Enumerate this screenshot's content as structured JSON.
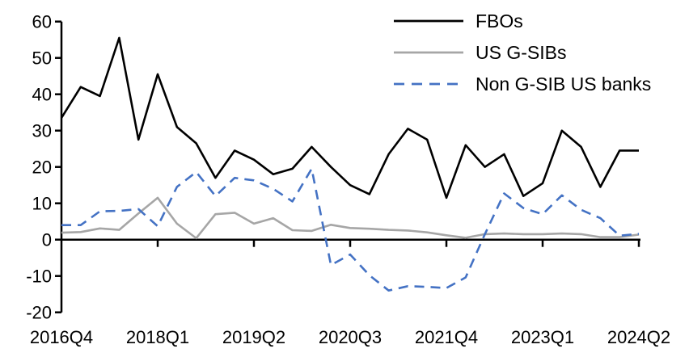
{
  "chart_data": {
    "type": "line",
    "title": "",
    "xlabel": "",
    "ylabel": "",
    "categories": [
      "2016Q4",
      "2017Q1",
      "2017Q2",
      "2017Q3",
      "2017Q4",
      "2018Q1",
      "2018Q2",
      "2018Q3",
      "2018Q4",
      "2019Q1",
      "2019Q2",
      "2019Q3",
      "2019Q4",
      "2020Q1",
      "2020Q2",
      "2020Q3",
      "2020Q4",
      "2021Q1",
      "2021Q2",
      "2021Q3",
      "2021Q4",
      "2022Q1",
      "2022Q2",
      "2022Q3",
      "2022Q4",
      "2023Q1",
      "2023Q2",
      "2023Q3",
      "2023Q4",
      "2024Q1",
      "2024Q2"
    ],
    "series": [
      {
        "name": "FBOs",
        "color": "#000000",
        "style": "solid",
        "values": [
          33.5,
          42,
          39.5,
          55.5,
          27.5,
          45.5,
          31,
          26.5,
          17,
          24.5,
          22,
          18,
          19.5,
          25.5,
          20,
          15,
          12.5,
          23.5,
          30.5,
          27.5,
          11.5,
          26,
          20,
          23.5,
          12,
          15.5,
          30,
          25.5,
          14.5,
          24.5,
          24.5
        ]
      },
      {
        "name": "US G-SIBs",
        "color": "#a6a6a6",
        "style": "solid",
        "values": [
          1.9,
          2.1,
          3.1,
          2.7,
          7.2,
          11.5,
          4.4,
          0.4,
          7,
          7.4,
          4.4,
          5.9,
          2.6,
          2.4,
          4.1,
          3.2,
          3,
          2.7,
          2.5,
          2,
          1.2,
          0.5,
          1.5,
          1.7,
          1.5,
          1.5,
          1.7,
          1.5,
          0.7,
          0.7,
          1.4
        ]
      },
      {
        "name": "Non G-SIB US banks",
        "color": "#4472c4",
        "style": "dashed",
        "values": [
          4,
          4,
          7.8,
          7.9,
          8.4,
          3.7,
          14.5,
          18.6,
          12,
          17,
          16.3,
          14,
          10.5,
          19.5,
          -7,
          -4.1,
          -9.8,
          -14,
          -12.8,
          -13,
          -13.3,
          -10.4,
          1.5,
          12.7,
          8.7,
          7,
          12.2,
          8.2,
          5.9,
          1.1,
          1.6
        ]
      }
    ],
    "x_tick_labels": [
      "2016Q4",
      "2018Q1",
      "2019Q2",
      "2020Q3",
      "2021Q4",
      "2023Q1",
      "2024Q2"
    ],
    "y_ticks": [
      60,
      50,
      40,
      30,
      20,
      10,
      0,
      -10,
      -20
    ],
    "ylim": [
      -20,
      60
    ],
    "grid": false,
    "legend_position": "top-right",
    "axis_color": "#000000"
  }
}
